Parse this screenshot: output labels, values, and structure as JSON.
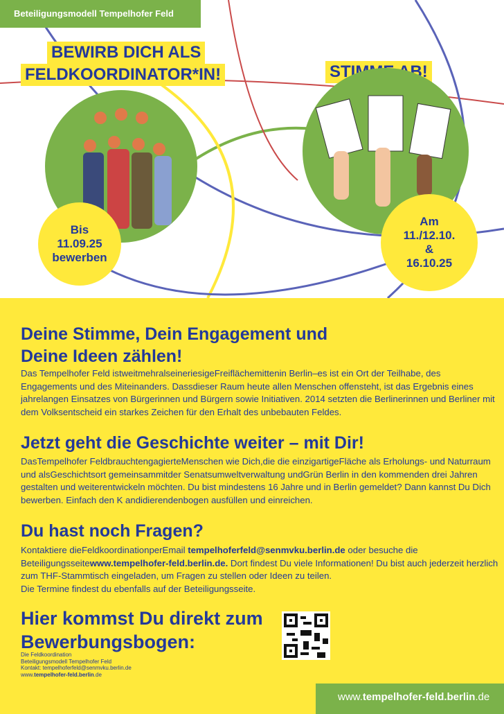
{
  "header": {
    "title": "Beteiligungsmodell Tempelhofer Feld"
  },
  "left": {
    "headline_1": "BEWIRB DICH ALS",
    "headline_2": "FELDKOORDINATOR*IN!",
    "badge": [
      "Bis",
      "11.09.25",
      "bewerben"
    ]
  },
  "right": {
    "headline": "STIMME AB!",
    "badge": [
      "Am",
      "11./12.10.",
      "&",
      "16.10.25"
    ]
  },
  "section1": {
    "title_1": "Deine Stimme, Dein Engagement und",
    "title_2": "Deine Ideen zählen!",
    "text": "Das Tempelhofer Feld istweitmehralseineriesigeFreiflächemittenin Berlin–es ist ein Ort der Teilhabe, des Engagements und des Miteinanders. Dassdieser Raum heute allen Menschen offensteht, ist das Ergebnis eines jahrelangen Einsatzes von Bürgerinnen und Bürgern sowie Initiativen. 2014 setzten die Berlinerinnen und Berliner mit dem Volksentscheid ein starkes Zeichen für den Erhalt des unbebauten Feldes."
  },
  "section2": {
    "title": "Jetzt geht die Geschichte weiter – mit Dir!",
    "text": "DasTempelhofer FeldbrauchtengagierteMenschen wie Dich,die die einzigartigeFläche als Erholungs- und Naturraum und alsGeschichtsort gemeinsammitder Senatsumweltverwaltung undGrün Berlin in den kommenden drei Jahren gestalten und weiterentwickeln möchten. Du bist mindestens 16 Jahre und in Berlin gemeldet? Dann kannst Du Dich bewerben. Einfach den K andidierendenbogen ausfüllen und einreichen."
  },
  "section3": {
    "title": "Du hast noch Fragen?",
    "t1": "Kontaktiere dieFeldkoordinationperEmail ",
    "email": "tempelhoferfeld@senmvku.berlin.de",
    "t2": " oder besuche die Beteiligungsseite",
    "url": "www.tempelhofer-feld.berlin.de.",
    "t3": " Dort findest Du viele Informationen! Du bist auch jederzeit herzlich zum THF-Stammtisch eingeladen, um Fragen zu stellen oder Ideen zu teilen.",
    "t4": "Die Termine findest du ebenfalls auf der Beteiligungsseite."
  },
  "section4": {
    "title_1": "Hier kommst Du direkt zum",
    "title_2": "Bewerbungsbogen:"
  },
  "imprint": {
    "l1": "Die Feldkoordination",
    "l2": "Beteiligungsmodell Tempelhofer Feld",
    "l3": "Kontakt: tempelhoferfeld@senmvku.berlin.de",
    "l4a": "www.",
    "l4b": "tempelhofer-feld.berlin",
    ".l4c": ".de",
    "l4c": ".de"
  },
  "footer": {
    "a": "www.",
    "b": "tempelhofer-feld.berlin",
    ".c": ".de",
    "c": ".de"
  },
  "colors": {
    "yellow": "#ffe93b",
    "green": "#7bb24a",
    "blue": "#23399a"
  }
}
